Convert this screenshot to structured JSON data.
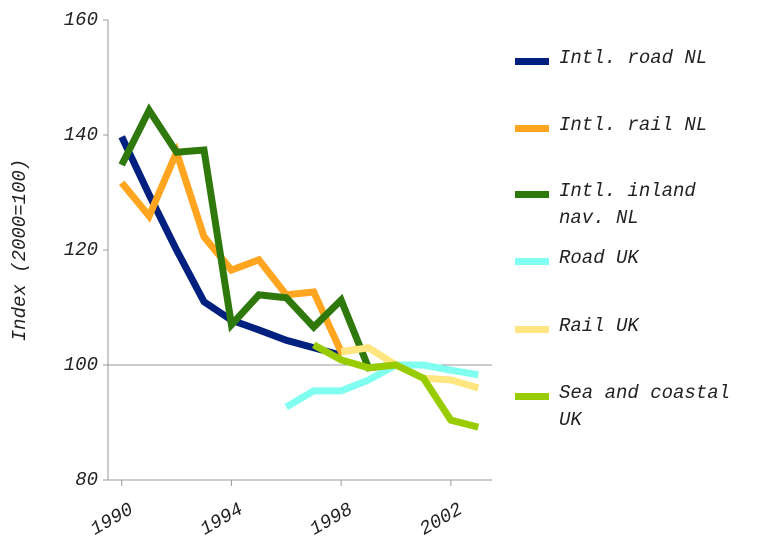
{
  "chart_data": {
    "type": "line",
    "ylabel": "Index (2000=100)",
    "x": [
      1990,
      1991,
      1992,
      1993,
      1994,
      1995,
      1996,
      1997,
      1998,
      1999,
      2000,
      2001,
      2002,
      2003
    ],
    "xlim": [
      1989.5,
      2003.5
    ],
    "xticks": [
      1990,
      1994,
      1998,
      2002
    ],
    "ylim": [
      80,
      160
    ],
    "yticks": [
      80,
      100,
      120,
      140,
      160
    ],
    "reference_line": 100,
    "series": [
      {
        "name": "Intl. road NL",
        "color": "#002080",
        "values": [
          139.7,
          129.6,
          120,
          111,
          107.8,
          106.1,
          104.3,
          103,
          101.7,
          null,
          null,
          null,
          null,
          null
        ]
      },
      {
        "name": "Intl. rail NL",
        "color": "#ffa520",
        "values": [
          131.7,
          125.9,
          137,
          122.3,
          116.5,
          118.3,
          112.2,
          112.7,
          102.3,
          103,
          null,
          null,
          null,
          null
        ]
      },
      {
        "name": "Intl. inland nav. NL",
        "color": "#2f780c",
        "values": [
          134.8,
          144.3,
          137,
          137.4,
          107,
          112.2,
          111.7,
          106.6,
          111.3,
          99.5,
          100,
          null,
          null,
          null
        ]
      },
      {
        "name": "Road UK",
        "color": "#80fff0",
        "values": [
          null,
          null,
          null,
          null,
          null,
          null,
          92.7,
          95.5,
          95.5,
          97.4,
          100,
          100,
          99.1,
          98.3
        ]
      },
      {
        "name": "Rail UK",
        "color": "#ffe680",
        "values": [
          null,
          null,
          null,
          null,
          null,
          null,
          null,
          null,
          102.3,
          103,
          100,
          97.7,
          97.4,
          96
        ]
      },
      {
        "name": "Sea and coastal UK",
        "color": "#99cc00",
        "values": [
          null,
          null,
          null,
          null,
          null,
          null,
          null,
          103.5,
          100.9,
          99.5,
          100,
          97.7,
          90.4,
          89.2
        ]
      }
    ]
  }
}
